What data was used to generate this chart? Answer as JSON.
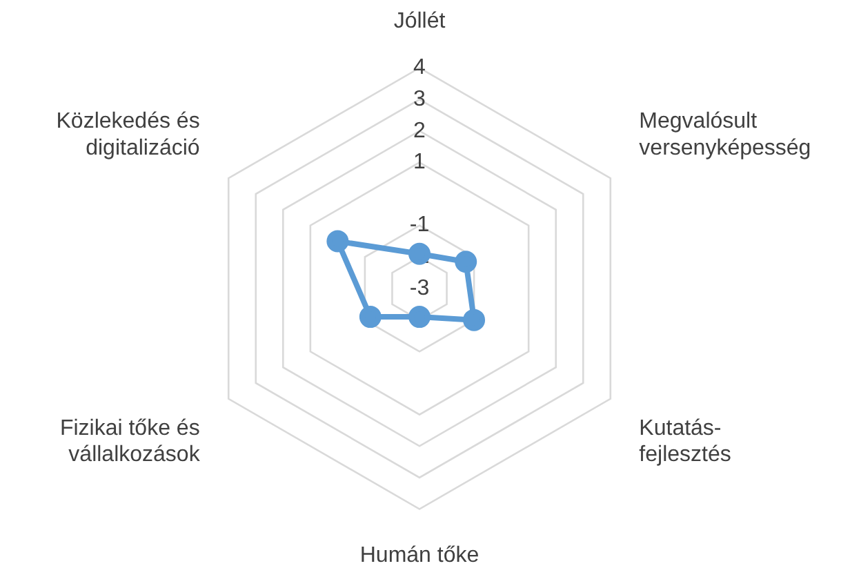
{
  "chart_data": {
    "type": "radar",
    "categories": [
      "Jóllét",
      "Megvalósult versenyképesség",
      "Kutatás-fejlesztés",
      "Humán tőke",
      "Fizikai tőke és vállalkozások",
      "Közlekedés és digitalizáció"
    ],
    "series": [
      {
        "color": "#5b9bd5",
        "values": [
          -1.9,
          -1.3,
          -1.0,
          -2.1,
          -1.2,
          0
        ]
      }
    ],
    "ylim": [
      -3,
      4
    ],
    "yticks": [
      -3,
      -2,
      -1,
      1,
      2,
      3,
      4
    ],
    "grid": true,
    "legend": false,
    "marker": "circle",
    "line_style": "solid"
  }
}
